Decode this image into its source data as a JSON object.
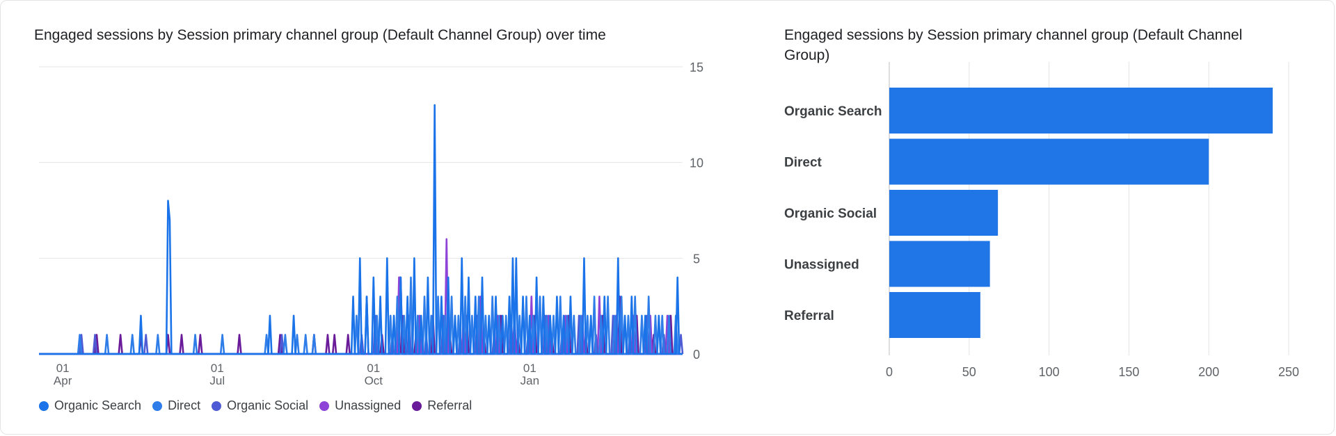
{
  "chart_data": [
    {
      "type": "line",
      "title": "Engaged sessions by Session primary channel group (Default Channel Group) over time",
      "xlabel": "",
      "ylabel": "",
      "ylim": [
        0,
        15
      ],
      "y_ticks": [
        "0",
        "5",
        "10",
        "15"
      ],
      "x_ticks": [
        {
          "day": "01",
          "month": "Apr",
          "index": 14
        },
        {
          "day": "01",
          "month": "Jul",
          "index": 105
        },
        {
          "day": "01",
          "month": "Oct",
          "index": 197
        },
        {
          "day": "01",
          "month": "Jan",
          "index": 289
        }
      ],
      "days": 380,
      "series": [
        {
          "name": "Organic Search",
          "color": "#1a73e8",
          "points": [
            [
              60,
              2
            ],
            [
              76,
              8
            ],
            [
              77,
              7
            ],
            [
              136,
              2
            ],
            [
              150,
              2
            ],
            [
              185,
              3
            ],
            [
              189,
              5
            ],
            [
              193,
              3
            ],
            [
              197,
              4
            ],
            [
              201,
              3
            ],
            [
              205,
              5
            ],
            [
              209,
              2
            ],
            [
              213,
              4
            ],
            [
              217,
              3
            ],
            [
              221,
              5
            ],
            [
              225,
              2
            ],
            [
              229,
              4
            ],
            [
              233,
              13
            ],
            [
              237,
              3
            ],
            [
              241,
              4
            ],
            [
              245,
              2
            ],
            [
              249,
              5
            ],
            [
              253,
              4
            ],
            [
              257,
              3
            ],
            [
              261,
              4
            ],
            [
              265,
              2
            ],
            [
              269,
              3
            ],
            [
              273,
              2
            ],
            [
              277,
              3
            ],
            [
              279,
              5
            ],
            [
              281,
              5
            ],
            [
              285,
              3
            ],
            [
              289,
              2
            ],
            [
              293,
              4
            ],
            [
              297,
              3
            ],
            [
              301,
              2
            ],
            [
              305,
              3
            ],
            [
              309,
              2
            ],
            [
              313,
              3
            ],
            [
              321,
              5
            ],
            [
              325,
              2
            ],
            [
              333,
              3
            ],
            [
              341,
              5
            ],
            [
              345,
              2
            ],
            [
              349,
              3
            ],
            [
              357,
              2
            ],
            [
              365,
              2
            ],
            [
              376,
              4
            ]
          ]
        },
        {
          "name": "Direct",
          "color": "#2e7de9",
          "points": [
            [
              24,
              1
            ],
            [
              40,
              1
            ],
            [
              55,
              1
            ],
            [
              70,
              1
            ],
            [
              92,
              1
            ],
            [
              108,
              1
            ],
            [
              134,
              1
            ],
            [
              145,
              1
            ],
            [
              152,
              1
            ],
            [
              157,
              1
            ],
            [
              162,
              1
            ],
            [
              187,
              2
            ],
            [
              193,
              3
            ],
            [
              199,
              2
            ],
            [
              207,
              2
            ],
            [
              211,
              3
            ],
            [
              215,
              2
            ],
            [
              219,
              4
            ],
            [
              223,
              2
            ],
            [
              227,
              3
            ],
            [
              231,
              2
            ],
            [
              235,
              3
            ],
            [
              239,
              2
            ],
            [
              243,
              3
            ],
            [
              247,
              2
            ],
            [
              251,
              3
            ],
            [
              255,
              2
            ],
            [
              259,
              3
            ],
            [
              263,
              2
            ],
            [
              267,
              3
            ],
            [
              271,
              2
            ],
            [
              275,
              2
            ],
            [
              283,
              2
            ],
            [
              287,
              3
            ],
            [
              291,
              2
            ],
            [
              295,
              3
            ],
            [
              299,
              2
            ],
            [
              303,
              2
            ],
            [
              307,
              3
            ],
            [
              311,
              2
            ],
            [
              315,
              2
            ],
            [
              319,
              2
            ],
            [
              323,
              2
            ],
            [
              327,
              3
            ],
            [
              331,
              2
            ],
            [
              335,
              3
            ],
            [
              339,
              2
            ],
            [
              343,
              3
            ],
            [
              347,
              2
            ],
            [
              351,
              3
            ],
            [
              355,
              2
            ],
            [
              359,
              3
            ],
            [
              363,
              2
            ],
            [
              367,
              2
            ],
            [
              371,
              2
            ],
            [
              375,
              2
            ]
          ]
        },
        {
          "name": "Organic Social",
          "color": "#4f5bd5",
          "points": [
            [
              25,
              1
            ],
            [
              33,
              1
            ],
            [
              63,
              1
            ],
            [
              143,
              1
            ],
            [
              190,
              1
            ],
            [
              198,
              2
            ],
            [
              208,
              1
            ],
            [
              218,
              2
            ],
            [
              228,
              1
            ],
            [
              238,
              2
            ],
            [
              248,
              1
            ],
            [
              258,
              2
            ],
            [
              268,
              1
            ],
            [
              278,
              2
            ],
            [
              288,
              1
            ],
            [
              298,
              2
            ],
            [
              308,
              1
            ],
            [
              318,
              2
            ],
            [
              328,
              1
            ],
            [
              338,
              2
            ],
            [
              348,
              1
            ],
            [
              358,
              2
            ],
            [
              368,
              1
            ],
            [
              378,
              1
            ]
          ]
        },
        {
          "name": "Unassigned",
          "color": "#8e44d6",
          "points": [
            [
              212,
              4
            ],
            [
              213,
              4
            ],
            [
              224,
              2
            ],
            [
              240,
              6
            ],
            [
              250,
              2
            ],
            [
              260,
              3
            ],
            [
              270,
              2
            ],
            [
              280,
              2
            ],
            [
              290,
              3
            ],
            [
              300,
              2
            ],
            [
              310,
              2
            ],
            [
              320,
              2
            ],
            [
              330,
              3
            ],
            [
              340,
              2
            ],
            [
              350,
              2
            ],
            [
              360,
              2
            ],
            [
              370,
              2
            ]
          ]
        },
        {
          "name": "Referral",
          "color": "#6a1b9a",
          "points": [
            [
              34,
              1
            ],
            [
              48,
              1
            ],
            [
              60,
              1
            ],
            [
              76,
              1
            ],
            [
              84,
              1
            ],
            [
              95,
              1
            ],
            [
              118,
              1
            ],
            [
              142,
              1
            ],
            [
              162,
              1
            ],
            [
              170,
              1
            ],
            [
              174,
              1
            ],
            [
              182,
              1
            ],
            [
              202,
              1
            ],
            [
              214,
              2
            ],
            [
              222,
              1
            ],
            [
              232,
              2
            ],
            [
              242,
              1
            ],
            [
              252,
              2
            ],
            [
              262,
              1
            ],
            [
              272,
              2
            ],
            [
              282,
              1
            ],
            [
              292,
              2
            ],
            [
              302,
              1
            ],
            [
              312,
              2
            ],
            [
              322,
              1
            ],
            [
              332,
              2
            ],
            [
              342,
              3
            ],
            [
              352,
              2
            ],
            [
              362,
              1
            ],
            [
              372,
              2
            ]
          ]
        }
      ]
    },
    {
      "type": "bar",
      "title": "Engaged sessions by Session primary channel group (Default Channel Group)",
      "orientation": "horizontal",
      "categories": [
        "Organic Search",
        "Direct",
        "Organic Social",
        "Unassigned",
        "Referral"
      ],
      "values": [
        240,
        200,
        68,
        63,
        57
      ],
      "xlim": [
        0,
        250
      ],
      "x_ticks": [
        "0",
        "50",
        "100",
        "150",
        "200",
        "250"
      ],
      "bar_color": "#2176e7",
      "grid": true
    }
  ]
}
